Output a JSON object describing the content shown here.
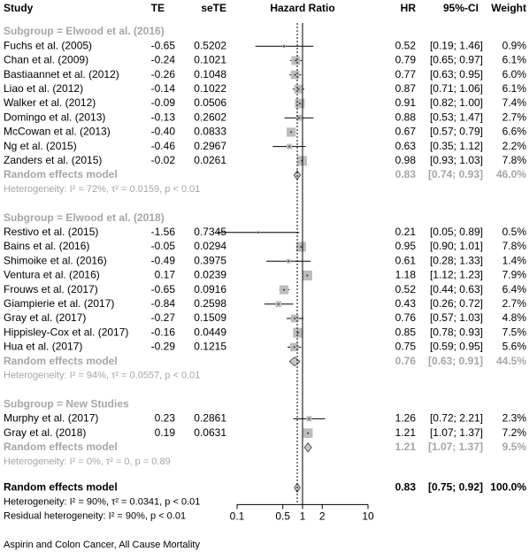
{
  "chart_data": {
    "type": "forest",
    "columns": {
      "study": "Study",
      "TE": "TE",
      "seTE": "seTE",
      "plot": "Hazard Ratio",
      "hr": "HR",
      "ci": "95%-CI",
      "weight": "Weight"
    },
    "xlim": [
      0.1,
      10
    ],
    "xticks": [
      0.1,
      0.5,
      1,
      2,
      10
    ],
    "log_x": true,
    "reference_line": 1,
    "square_color": "#bdbdbd",
    "diamond_color": "#c8c8c8",
    "subgroups": [
      {
        "title": "Subgroup = Elwood et al. (2016)",
        "studies": [
          {
            "study": "Fuchs et al. (2005)",
            "TE": -0.65,
            "seTE": 0.5202,
            "hr": 0.52,
            "lower": 0.19,
            "upper": 1.46,
            "ci_label": "[0.19; 1.46]",
            "weight": 0.9,
            "weight_label": "0.9%"
          },
          {
            "study": "Chan et al. (2009)",
            "TE": -0.24,
            "seTE": 0.1021,
            "hr": 0.79,
            "lower": 0.65,
            "upper": 0.97,
            "ci_label": "[0.65; 0.97]",
            "weight": 6.1,
            "weight_label": "6.1%"
          },
          {
            "study": "Bastiaannet et al. (2012)",
            "TE": -0.26,
            "seTE": 0.1048,
            "hr": 0.77,
            "lower": 0.63,
            "upper": 0.95,
            "ci_label": "[0.63; 0.95]",
            "weight": 6,
            "weight_label": "6.0%"
          },
          {
            "study": "Liao et al. (2012)",
            "TE": -0.14,
            "seTE": 0.1022,
            "hr": 0.87,
            "lower": 0.71,
            "upper": 1.06,
            "ci_label": "[0.71; 1.06]",
            "weight": 6.1,
            "weight_label": "6.1%"
          },
          {
            "study": "Walker et al. (2012)",
            "TE": -0.09,
            "seTE": 0.0506,
            "hr": 0.91,
            "lower": 0.82,
            "upper": 1,
            "ci_label": "[0.82; 1.00]",
            "weight": 7.4,
            "weight_label": "7.4%"
          },
          {
            "study": "Domingo et al. (2013)",
            "TE": -0.13,
            "seTE": 0.2602,
            "hr": 0.88,
            "lower": 0.53,
            "upper": 1.47,
            "ci_label": "[0.53; 1.47]",
            "weight": 2.7,
            "weight_label": "2.7%"
          },
          {
            "study": "McCowan et al. (2013)",
            "TE": {
              "value": -0.4,
              "label": "-0.40"
            },
            "seTE": 0.0833,
            "hr": 0.67,
            "lower": 0.57,
            "upper": 0.79,
            "ci_label": "[0.57; 0.79]",
            "weight": 6.6,
            "weight_label": "6.6%"
          },
          {
            "study": "Ng et al. (2015)",
            "TE": -0.46,
            "seTE": 0.2967,
            "hr": 0.63,
            "lower": 0.35,
            "upper": 1.12,
            "ci_label": "[0.35; 1.12]",
            "weight": 2.2,
            "weight_label": "2.2%"
          },
          {
            "study": "Zanders et al. (2015)",
            "TE": -0.02,
            "seTE": 0.0261,
            "hr": 0.98,
            "lower": 0.93,
            "upper": 1.03,
            "ci_label": "[0.93; 1.03]",
            "weight": 7.8,
            "weight_label": "7.8%"
          }
        ],
        "random": {
          "label": "Random effects model",
          "hr": 0.83,
          "lower": 0.74,
          "upper": 0.93,
          "ci_label": "[0.74; 0.93]",
          "weight": 46,
          "weight_label": "46.0%"
        },
        "heterogeneity": "Heterogeneity: I² = 72%, τ² = 0.0159, p < 0.01"
      },
      {
        "title": "Subgroup = Elwood et al. (2018)",
        "studies": [
          {
            "study": "Restivo et al. (2015)",
            "TE": -1.56,
            "seTE": 0.7345,
            "hr": 0.21,
            "lower": 0.05,
            "upper": 0.89,
            "ci_label": "[0.05; 0.89]",
            "weight": 0.5,
            "weight_label": "0.5%"
          },
          {
            "study": "Bains et al. (2016)",
            "TE": -0.05,
            "seTE": 0.0294,
            "hr": 0.95,
            "lower": 0.9,
            "upper": 1.01,
            "ci_label": "[0.90; 1.01]",
            "weight": 7.8,
            "weight_label": "7.8%"
          },
          {
            "study": "Shimoike et al. (2016)",
            "TE": -0.49,
            "seTE": 0.3975,
            "hr": 0.61,
            "lower": 0.28,
            "upper": 1.33,
            "ci_label": "[0.28; 1.33]",
            "weight": 1.4,
            "weight_label": "1.4%"
          },
          {
            "study": "Ventura et al. (2016)",
            "TE": 0.17,
            "seTE": 0.0239,
            "hr": 1.18,
            "lower": 1.12,
            "upper": 1.23,
            "ci_label": "[1.12; 1.23]",
            "weight": 7.9,
            "weight_label": "7.9%"
          },
          {
            "study": "Frouws et al. (2017)",
            "TE": -0.65,
            "seTE": 0.0916,
            "hr": 0.52,
            "lower": 0.44,
            "upper": 0.63,
            "ci_label": "[0.44; 0.63]",
            "weight": 6.4,
            "weight_label": "6.4%"
          },
          {
            "study": "Giampierie et al. (2017)",
            "TE": -0.84,
            "seTE": 0.2598,
            "hr": 0.43,
            "lower": 0.26,
            "upper": 0.72,
            "ci_label": "[0.26; 0.72]",
            "weight": 2.7,
            "weight_label": "2.7%"
          },
          {
            "study": "Gray et al. (2017)",
            "TE": -0.27,
            "seTE": 0.1509,
            "hr": 0.76,
            "lower": 0.57,
            "upper": 1.03,
            "ci_label": "[0.57; 1.03]",
            "weight": 4.8,
            "weight_label": "4.8%"
          },
          {
            "study": "Hippisley-Cox et al. (2017)",
            "TE": -0.16,
            "seTE": 0.0449,
            "hr": 0.85,
            "lower": 0.78,
            "upper": 0.93,
            "ci_label": "[0.78; 0.93]",
            "weight": 7.5,
            "weight_label": "7.5%"
          },
          {
            "study": "Hua et al. (2017)",
            "TE": -0.29,
            "seTE": 0.1215,
            "hr": 0.75,
            "lower": 0.59,
            "upper": 0.95,
            "ci_label": "[0.59; 0.95]",
            "weight": 5.6,
            "weight_label": "5.6%"
          }
        ],
        "random": {
          "label": "Random effects model",
          "hr": 0.76,
          "lower": 0.63,
          "upper": 0.91,
          "ci_label": "[0.63; 0.91]",
          "weight": 44.5,
          "weight_label": "44.5%"
        },
        "heterogeneity": "Heterogeneity: I² = 94%, τ² = 0.0557, p < 0.01"
      },
      {
        "title": "Subgroup = New Studies",
        "studies": [
          {
            "study": "Murphy et al. (2017)",
            "TE": 0.23,
            "seTE": 0.2861,
            "hr": 1.26,
            "lower": 0.72,
            "upper": 2.21,
            "ci_label": "[0.72; 2.21]",
            "weight": 2.3,
            "weight_label": "2.3%"
          },
          {
            "study": "Gray et al. (2018)",
            "TE": 0.19,
            "seTE": 0.0631,
            "hr": 1.21,
            "lower": 1.07,
            "upper": 1.37,
            "ci_label": "[1.07; 1.37]",
            "weight": 7.2,
            "weight_label": "7.2%"
          }
        ],
        "random": {
          "label": "Random effects model",
          "hr": 1.21,
          "lower": 1.07,
          "upper": 1.37,
          "ci_label": "[1.07; 1.37]",
          "weight": 9.5,
          "weight_label": "9.5%"
        },
        "heterogeneity": "Heterogeneity: I² = 0%, τ² = 0, p = 0.89"
      }
    ],
    "overall": {
      "label": "Random effects model",
      "hr": 0.83,
      "lower": 0.75,
      "upper": 0.92,
      "ci_label": "[0.75; 0.92]",
      "weight": 100,
      "weight_label": "100.0%",
      "heterogeneity": "Heterogeneity: I² = 90%, τ² = 0.0341, p < 0.01",
      "residual": "Residual heterogeneity: I² = 90%, p < 0.01"
    },
    "caption": "Aspirin and Colon Cancer, All Cause Mortality"
  }
}
